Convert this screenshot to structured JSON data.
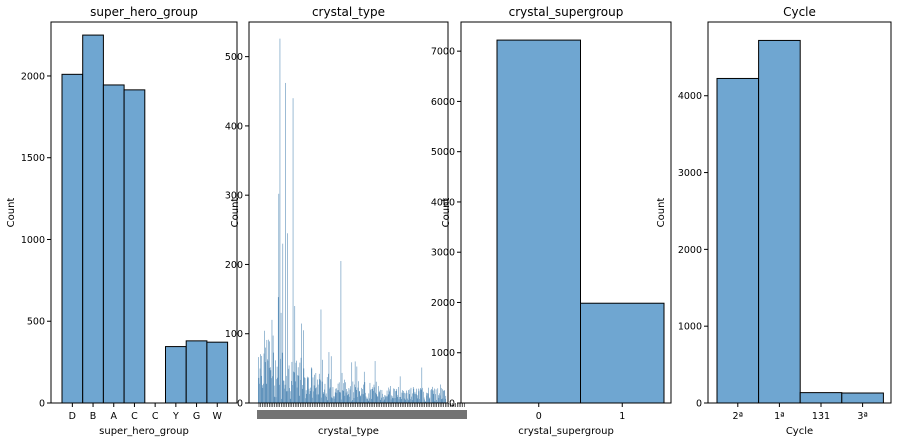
{
  "chart_data": [
    {
      "type": "bar",
      "title": "super_hero_group",
      "xlabel": "super_hero_group",
      "ylabel": "Count",
      "categories": [
        "D",
        "B",
        "A",
        "C",
        "C",
        "Y",
        "G",
        "W"
      ],
      "values": [
        2010,
        2250,
        1945,
        1915,
        0,
        345,
        380,
        372
      ],
      "ylim": [
        0,
        2330
      ],
      "yticks": [
        0,
        500,
        1000,
        1500,
        2000
      ],
      "color": "#6fa6d1",
      "grid": false
    },
    {
      "type": "bar",
      "title": "crystal_type",
      "xlabel": "crystal_type",
      "ylabel": "Count",
      "ylim": [
        0,
        550
      ],
      "yticks": [
        0,
        100,
        200,
        300,
        400,
        500
      ],
      "highlighted_values": [
        526,
        462,
        440,
        302,
        245,
        230,
        205,
        140,
        135,
        120,
        105,
        60
      ],
      "color": "#6fa6d1",
      "grid": false
    },
    {
      "type": "bar",
      "title": "crystal_supergroup",
      "xlabel": "crystal_supergroup",
      "ylabel": "Count",
      "categories": [
        "0",
        "1"
      ],
      "values": [
        7220,
        1985
      ],
      "ylim": [
        0,
        7580
      ],
      "yticks": [
        0,
        1000,
        2000,
        3000,
        4000,
        5000,
        6000,
        7000
      ],
      "color": "#6fa6d1",
      "grid": false
    },
    {
      "type": "bar",
      "title": "Cycle",
      "xlabel": "Cycle",
      "ylabel": "Count",
      "categories": [
        "2ª",
        "1ª",
        "131",
        "3ª"
      ],
      "values": [
        4225,
        4720,
        135,
        130
      ],
      "ylim": [
        0,
        4960
      ],
      "yticks": [
        0,
        1000,
        2000,
        3000,
        4000
      ],
      "color": "#6fa6d1",
      "grid": false
    }
  ]
}
